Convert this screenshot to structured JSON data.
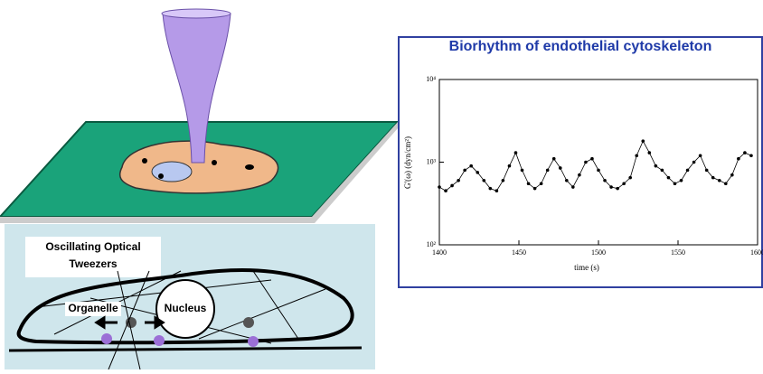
{
  "chart_data": {
    "type": "line",
    "title": "Biorhythm of endothelial cytoskeleton",
    "x_label": "time (s)",
    "y_label": "G'(ω) (dyn/cm²)",
    "x": [
      1400,
      1404,
      1408,
      1412,
      1416,
      1420,
      1424,
      1428,
      1432,
      1436,
      1440,
      1444,
      1448,
      1452,
      1456,
      1460,
      1464,
      1468,
      1472,
      1476,
      1480,
      1484,
      1488,
      1492,
      1496,
      1500,
      1504,
      1508,
      1512,
      1516,
      1520,
      1524,
      1528,
      1532,
      1536,
      1540,
      1544,
      1548,
      1552,
      1556,
      1560,
      1564,
      1568,
      1572,
      1576,
      1580,
      1584,
      1588,
      1592,
      1596
    ],
    "series": [
      {
        "color": "#000000",
        "values": [
          500,
          450,
          520,
          600,
          800,
          900,
          750,
          600,
          480,
          450,
          600,
          900,
          1300,
          800,
          550,
          480,
          550,
          800,
          1100,
          850,
          600,
          500,
          700,
          1000,
          1100,
          800,
          600,
          500,
          480,
          550,
          650,
          1200,
          1800,
          1300,
          900,
          800,
          650,
          550,
          600,
          800,
          1000,
          1200,
          800,
          650,
          600,
          550,
          700,
          1100,
          1300,
          1200
        ]
      }
    ],
    "xlim": [
      1400,
      1600
    ],
    "xticks": [
      1400,
      1450,
      1500,
      1550,
      1600
    ],
    "ylim": [
      100,
      10000
    ],
    "log_y": true,
    "yticks": [
      {
        "value": 100,
        "label": "10²"
      },
      {
        "value": 1000,
        "label": "10³"
      },
      {
        "value": 10000,
        "label": "10⁴"
      }
    ]
  },
  "diagram": {
    "labels": [
      "Oscillating Optical",
      "Tweezers",
      "Organelle",
      "Nucleus"
    ]
  }
}
